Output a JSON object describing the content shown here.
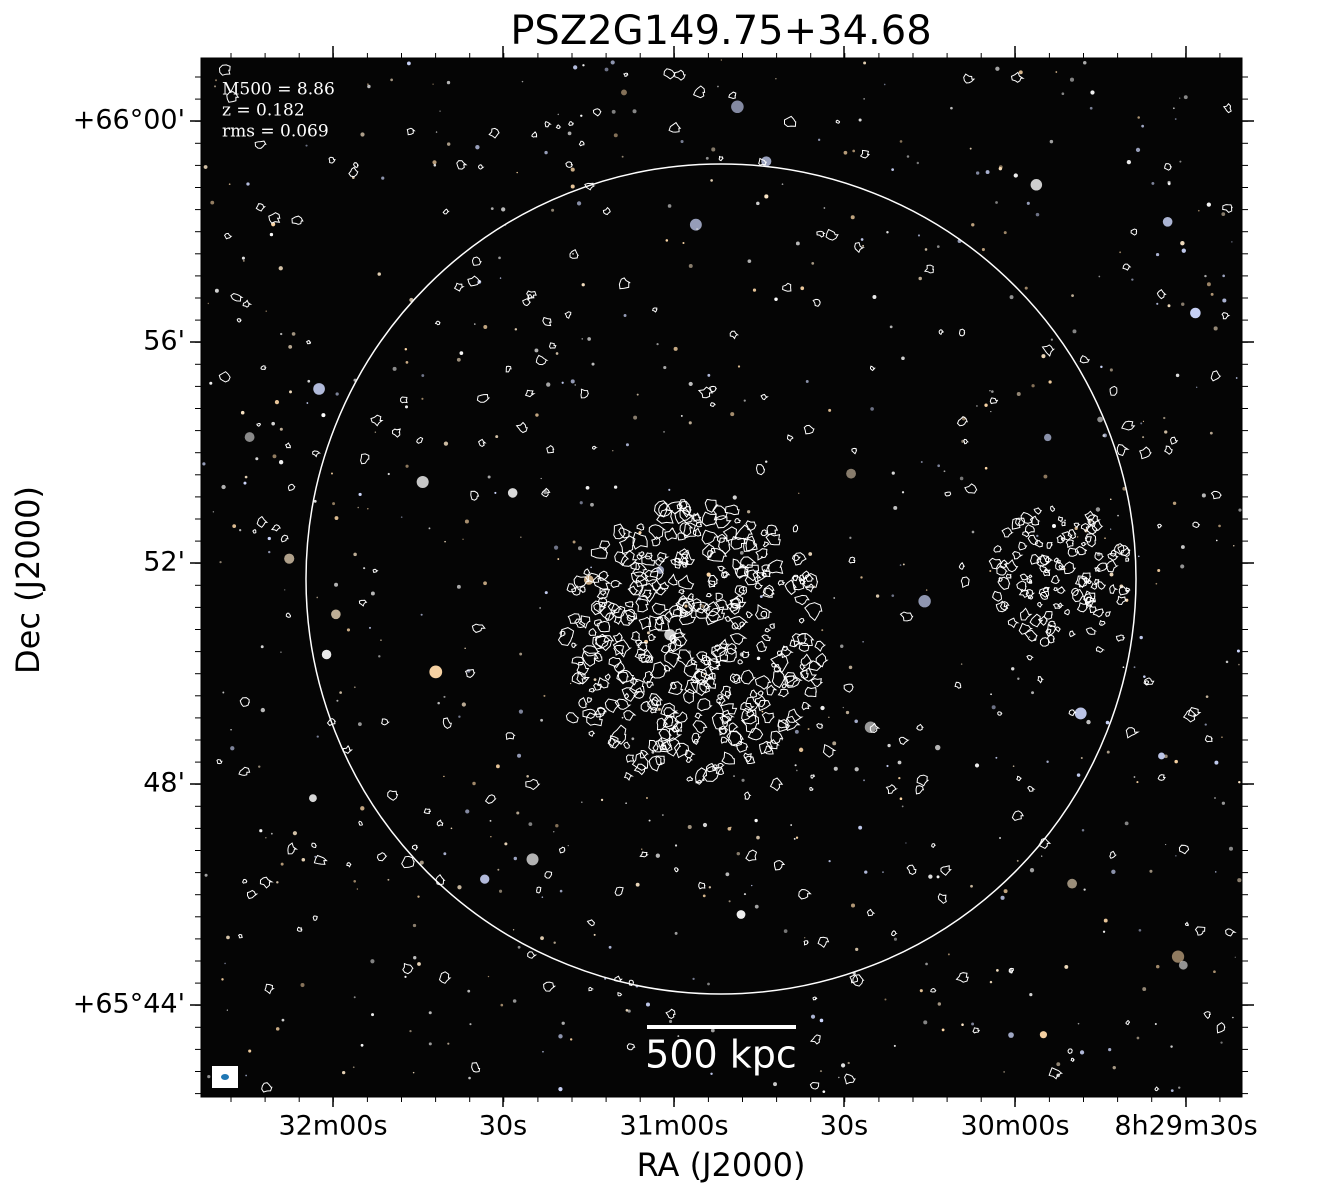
{
  "title": "PSZ2G149.75+34.68",
  "annotations": [
    "M500 = 8.86",
    "z = 0.182",
    "rms = 0.069"
  ],
  "x_axis": {
    "label": "RA (J2000)",
    "ticks": [
      "32m00s",
      "30s",
      "31m00s",
      "30s",
      "30m00s",
      "8h29m30s"
    ]
  },
  "y_axis": {
    "label": "Dec (J2000)",
    "ticks": [
      "+66°00'",
      "56'",
      "52'",
      "48'",
      "+65°44'"
    ]
  },
  "scale_bar": {
    "label": "500 kpc"
  }
}
